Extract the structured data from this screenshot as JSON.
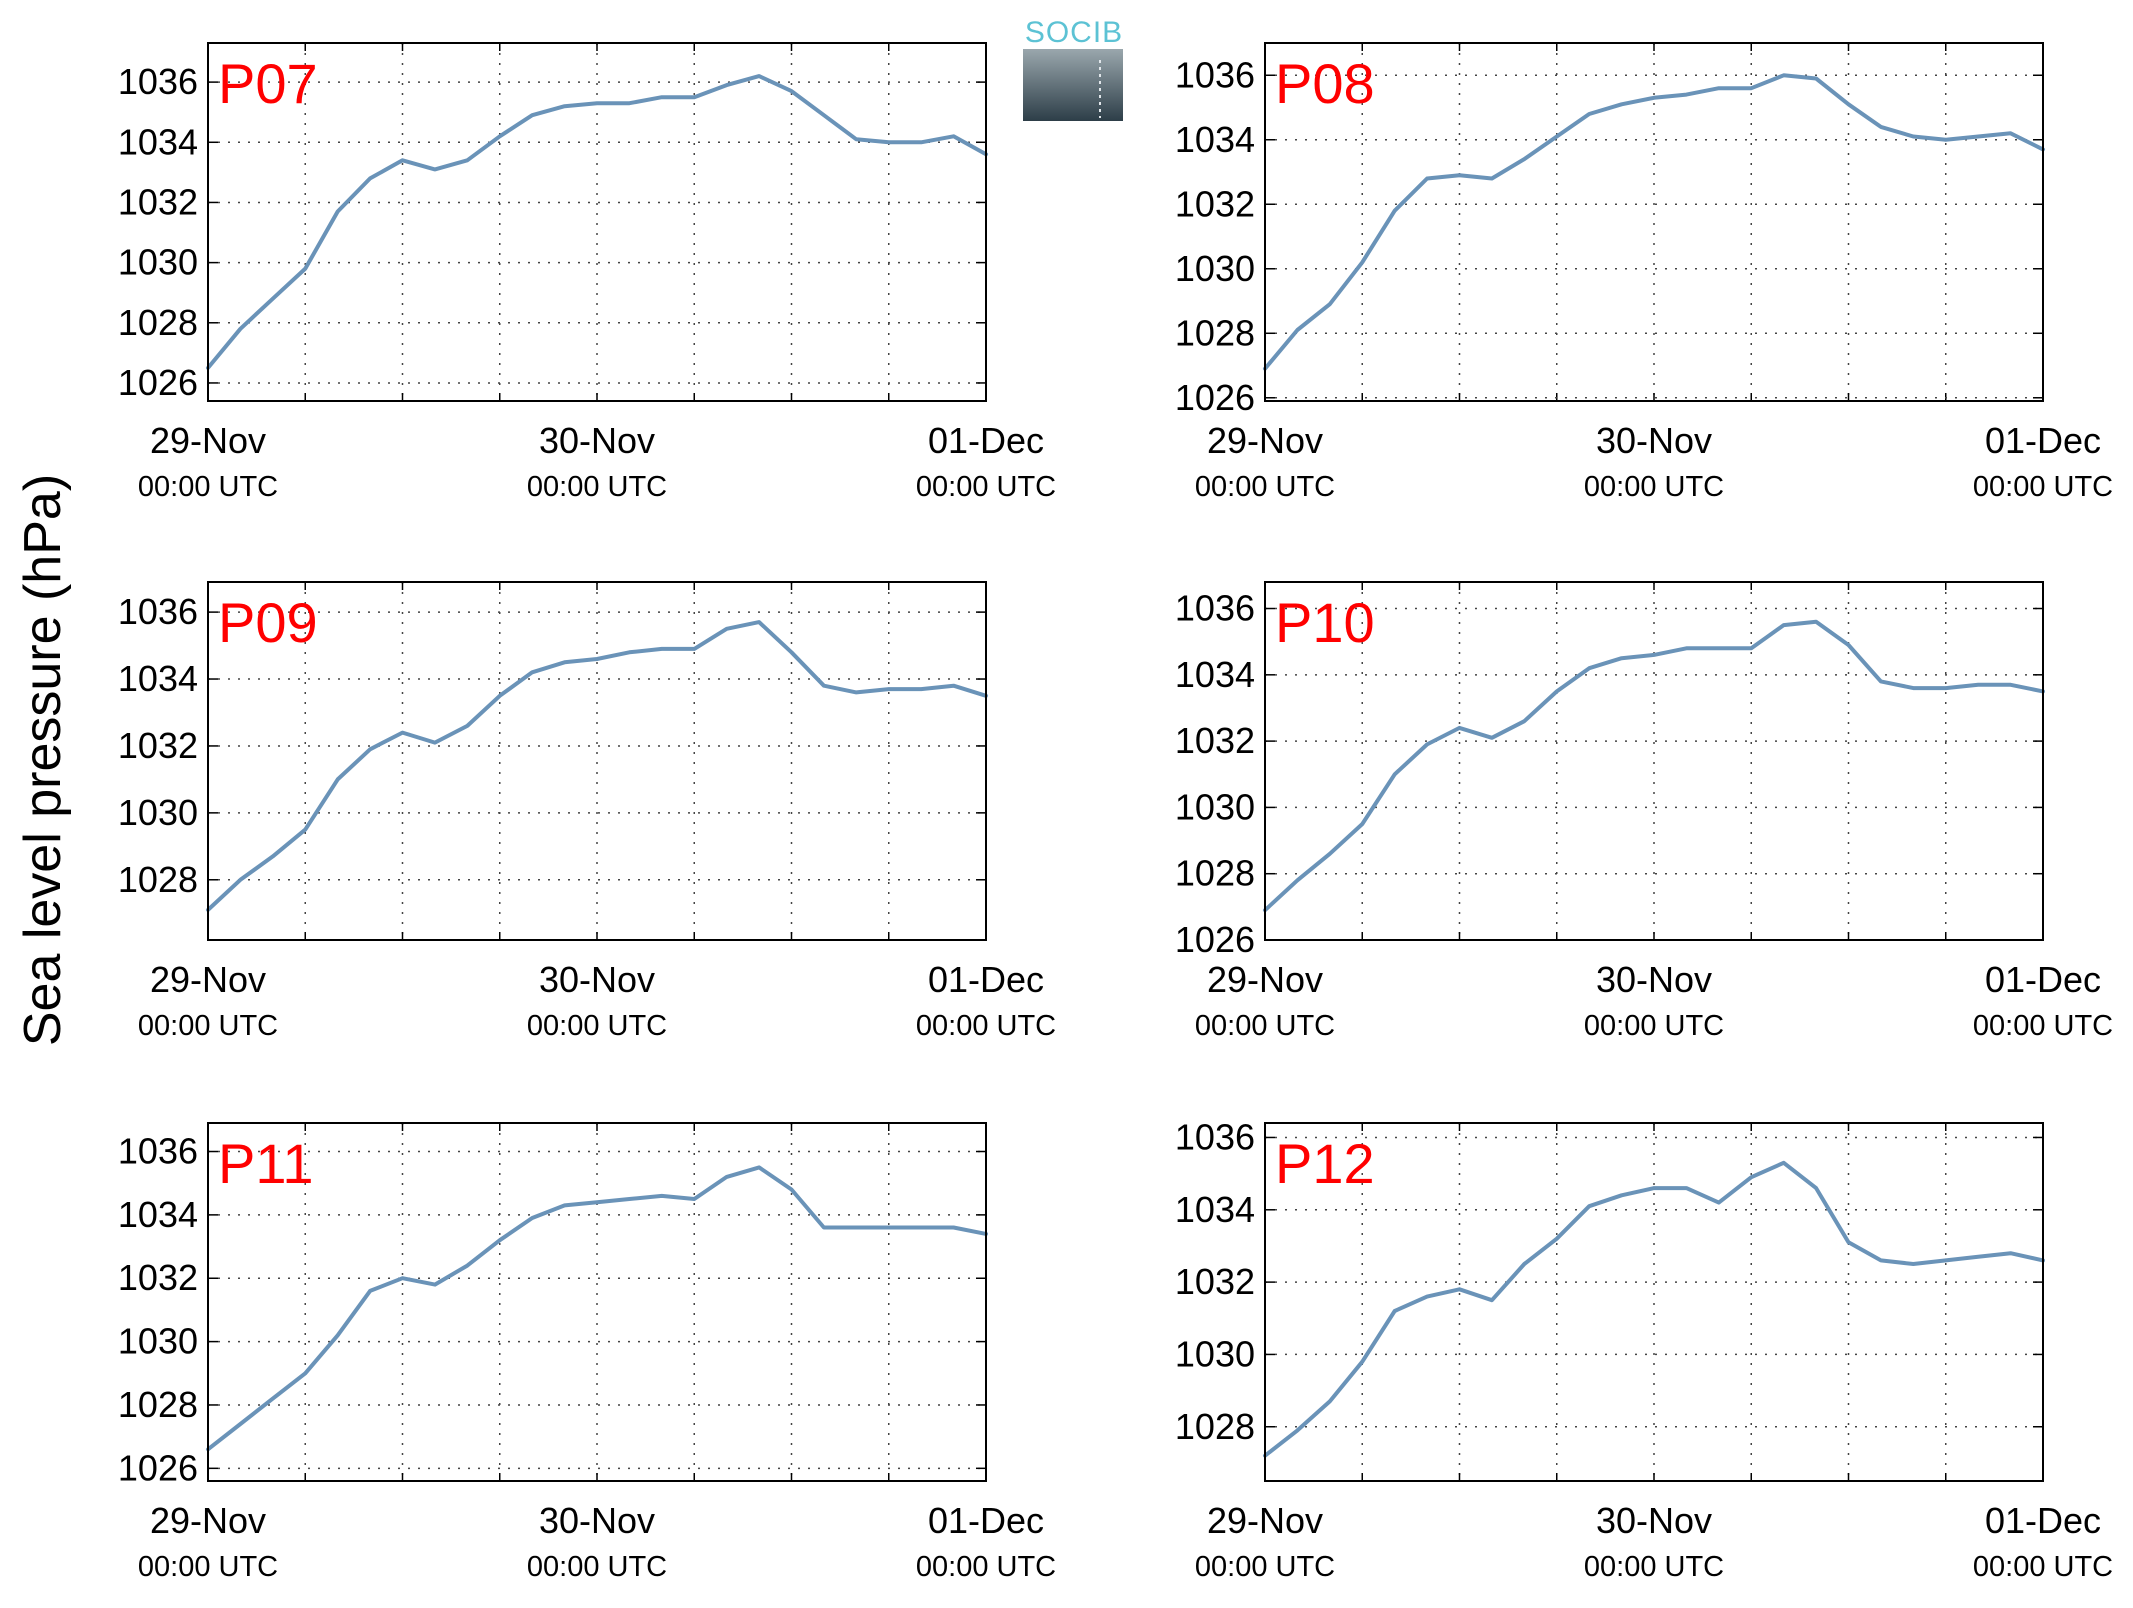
{
  "figure": {
    "ylabel": "Sea level pressure (hPa)",
    "logo_text": "SOCIB",
    "colors": {
      "line": "#6a93b8",
      "panel_label": "#ff0000",
      "grid": "#444444",
      "logo_text": "#5cc2d4"
    }
  },
  "chart_data": [
    {
      "type": "line",
      "panel": "P07",
      "xlim": [
        "29-Nov 00:00",
        "01-Dec 00:00"
      ],
      "ylim": [
        1025.4,
        1037.3
      ],
      "yticks": [
        1026,
        1028,
        1030,
        1032,
        1034,
        1036
      ],
      "xticks": [
        {
          "label": "29-Nov",
          "sub": "00:00 UTC"
        },
        {
          "label": "30-Nov",
          "sub": "00:00 UTC"
        },
        {
          "label": "01-Dec",
          "sub": "00:00 UTC"
        }
      ],
      "grid": true,
      "x_hours": [
        0,
        2,
        4,
        6,
        8,
        10,
        12,
        14,
        16,
        18,
        20,
        22,
        24,
        26,
        28,
        30,
        32,
        34,
        36,
        38,
        40,
        42,
        44,
        46,
        48
      ],
      "y": [
        1026.5,
        1027.8,
        1028.8,
        1029.8,
        1031.7,
        1032.8,
        1033.4,
        1033.1,
        1033.4,
        1034.2,
        1034.9,
        1035.2,
        1035.3,
        1035.3,
        1035.5,
        1035.5,
        1035.9,
        1036.2,
        1035.7,
        1034.9,
        1034.1,
        1034.0,
        1034.0,
        1034.2,
        1033.6
      ]
    },
    {
      "type": "line",
      "panel": "P08",
      "xlim": [
        "29-Nov 00:00",
        "01-Dec 00:00"
      ],
      "ylim": [
        1025.9,
        1037.0
      ],
      "yticks": [
        1026,
        1028,
        1030,
        1032,
        1034,
        1036
      ],
      "xticks": [
        {
          "label": "29-Nov",
          "sub": "00:00 UTC"
        },
        {
          "label": "30-Nov",
          "sub": "00:00 UTC"
        },
        {
          "label": "01-Dec",
          "sub": "00:00 UTC"
        }
      ],
      "grid": true,
      "x_hours": [
        0,
        2,
        4,
        6,
        8,
        10,
        12,
        14,
        16,
        18,
        20,
        22,
        24,
        26,
        28,
        30,
        32,
        34,
        36,
        38,
        40,
        42,
        44,
        46,
        48
      ],
      "y": [
        1026.9,
        1028.1,
        1028.9,
        1030.2,
        1031.8,
        1032.8,
        1032.9,
        1032.8,
        1033.4,
        1034.1,
        1034.8,
        1035.1,
        1035.3,
        1035.4,
        1035.6,
        1035.6,
        1036.0,
        1035.9,
        1035.1,
        1034.4,
        1034.1,
        1034.0,
        1034.1,
        1034.2,
        1033.7
      ]
    },
    {
      "type": "line",
      "panel": "P09",
      "xlim": [
        "29-Nov 00:00",
        "01-Dec 00:00"
      ],
      "ylim": [
        1026.2,
        1036.9
      ],
      "yticks": [
        1028,
        1030,
        1032,
        1034,
        1036
      ],
      "xticks": [
        {
          "label": "29-Nov",
          "sub": "00:00 UTC"
        },
        {
          "label": "30-Nov",
          "sub": "00:00 UTC"
        },
        {
          "label": "01-Dec",
          "sub": "00:00 UTC"
        }
      ],
      "grid": true,
      "x_hours": [
        0,
        2,
        4,
        6,
        8,
        10,
        12,
        14,
        16,
        18,
        20,
        22,
        24,
        26,
        28,
        30,
        32,
        34,
        36,
        38,
        40,
        42,
        44,
        46,
        48
      ],
      "y": [
        1027.1,
        1028.0,
        1028.7,
        1029.5,
        1031.0,
        1031.9,
        1032.4,
        1032.1,
        1032.6,
        1033.5,
        1034.2,
        1034.5,
        1034.6,
        1034.8,
        1034.9,
        1034.9,
        1035.5,
        1035.7,
        1034.8,
        1033.8,
        1033.6,
        1033.7,
        1033.7,
        1033.8,
        1033.5
      ]
    },
    {
      "type": "line",
      "panel": "P10",
      "xlim": [
        "29-Nov 00:00",
        "01-Dec 00:00"
      ],
      "ylim": [
        1026.0,
        1036.8
      ],
      "yticks": [
        1026,
        1028,
        1030,
        1032,
        1034,
        1036
      ],
      "xticks": [
        {
          "label": "29-Nov",
          "sub": "00:00 UTC"
        },
        {
          "label": "30-Nov",
          "sub": "00:00 UTC"
        },
        {
          "label": "01-Dec",
          "sub": "00:00 UTC"
        }
      ],
      "grid": true,
      "x_hours": [
        0,
        2,
        4,
        6,
        8,
        10,
        12,
        14,
        16,
        18,
        20,
        22,
        24,
        26,
        28,
        30,
        32,
        34,
        36,
        38,
        40,
        42,
        44,
        46,
        48
      ],
      "y": [
        1026.9,
        1027.8,
        1028.6,
        1029.5,
        1031.0,
        1031.9,
        1032.4,
        1032.1,
        1032.6,
        1033.5,
        1034.2,
        1034.5,
        1034.6,
        1034.8,
        1034.8,
        1034.8,
        1035.5,
        1035.6,
        1034.9,
        1033.8,
        1033.6,
        1033.6,
        1033.7,
        1033.7,
        1033.5
      ]
    },
    {
      "type": "line",
      "panel": "P11",
      "xlim": [
        "29-Nov 00:00",
        "01-Dec 00:00"
      ],
      "ylim": [
        1025.6,
        1036.9
      ],
      "yticks": [
        1026,
        1028,
        1030,
        1032,
        1034,
        1036
      ],
      "xticks": [
        {
          "label": "29-Nov",
          "sub": "00:00 UTC"
        },
        {
          "label": "30-Nov",
          "sub": "00:00 UTC"
        },
        {
          "label": "01-Dec",
          "sub": "00:00 UTC"
        }
      ],
      "grid": true,
      "x_hours": [
        0,
        2,
        4,
        6,
        8,
        10,
        12,
        14,
        16,
        18,
        20,
        22,
        24,
        26,
        28,
        30,
        32,
        34,
        36,
        38,
        40,
        42,
        44,
        46,
        48
      ],
      "y": [
        1026.6,
        1027.4,
        1028.2,
        1029.0,
        1030.2,
        1031.6,
        1032.0,
        1031.8,
        1032.4,
        1033.2,
        1033.9,
        1034.3,
        1034.4,
        1034.5,
        1034.6,
        1034.5,
        1035.2,
        1035.5,
        1034.8,
        1033.6,
        1033.6,
        1033.6,
        1033.6,
        1033.6,
        1033.4
      ]
    },
    {
      "type": "line",
      "panel": "P12",
      "xlim": [
        "29-Nov 00:00",
        "01-Dec 00:00"
      ],
      "ylim": [
        1026.5,
        1036.4
      ],
      "yticks": [
        1028,
        1030,
        1032,
        1034,
        1036
      ],
      "xticks": [
        {
          "label": "29-Nov",
          "sub": "00:00 UTC"
        },
        {
          "label": "30-Nov",
          "sub": "00:00 UTC"
        },
        {
          "label": "01-Dec",
          "sub": "00:00 UTC"
        }
      ],
      "grid": true,
      "x_hours": [
        0,
        2,
        4,
        6,
        8,
        10,
        12,
        14,
        16,
        18,
        20,
        22,
        24,
        26,
        28,
        30,
        32,
        34,
        36,
        38,
        40,
        42,
        44,
        46,
        48
      ],
      "y": [
        1027.2,
        1027.9,
        1028.7,
        1029.8,
        1031.2,
        1031.6,
        1031.8,
        1031.5,
        1032.5,
        1033.2,
        1034.1,
        1034.4,
        1034.6,
        1034.6,
        1034.2,
        1034.9,
        1035.3,
        1034.6,
        1033.1,
        1032.6,
        1032.5,
        1032.6,
        1032.7,
        1032.8,
        1032.6
      ]
    }
  ]
}
